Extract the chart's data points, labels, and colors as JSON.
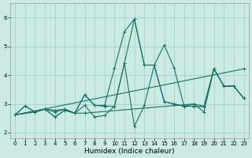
{
  "xlabel": "Humidex (Indice chaleur)",
  "bg_color": "#cceae4",
  "grid_color": "#aad4cc",
  "line_color": "#1a7068",
  "xlim": [
    -0.5,
    23.5
  ],
  "ylim": [
    1.8,
    6.5
  ],
  "yticks": [
    2,
    3,
    4,
    5,
    6
  ],
  "xticks": [
    0,
    1,
    2,
    3,
    4,
    5,
    6,
    7,
    8,
    9,
    10,
    11,
    12,
    13,
    14,
    15,
    16,
    17,
    18,
    19,
    20,
    21,
    22,
    23
  ],
  "series": [
    {
      "x": [
        0,
        1,
        2,
        3,
        4,
        5,
        6,
        7,
        8,
        9,
        10,
        11,
        12,
        13,
        14,
        15,
        16,
        17,
        18,
        19,
        20,
        21,
        22,
        23
      ],
      "y": [
        2.62,
        2.93,
        2.72,
        2.82,
        2.78,
        2.82,
        2.68,
        3.32,
        2.95,
        2.95,
        4.25,
        5.52,
        5.95,
        4.35,
        4.35,
        5.05,
        4.25,
        2.92,
        2.92,
        2.9,
        4.22,
        3.62,
        3.62,
        3.2
      ]
    },
    {
      "x": [
        0,
        2,
        3,
        4,
        5,
        6,
        7,
        8,
        9,
        10,
        11,
        12,
        13,
        14,
        15,
        16,
        17,
        18
      ],
      "y": [
        2.62,
        2.72,
        2.82,
        2.55,
        2.78,
        2.68,
        3.32,
        2.95,
        2.92,
        2.92,
        4.42,
        2.22,
        2.95,
        4.35,
        3.08,
        3.0,
        2.92,
        2.92
      ]
    },
    {
      "x": [
        0,
        3,
        4,
        5,
        6,
        7,
        18,
        19,
        20,
        21,
        22,
        23
      ],
      "y": [
        2.62,
        2.82,
        2.55,
        2.78,
        2.68,
        2.68,
        3.0,
        2.92,
        4.22,
        3.62,
        3.62,
        3.2
      ]
    },
    {
      "x": [
        0,
        23
      ],
      "y": [
        2.62,
        4.22
      ]
    },
    {
      "x": [
        0,
        1,
        2,
        3,
        4,
        5,
        6,
        7,
        8,
        9,
        10,
        11,
        12,
        13,
        14,
        15,
        16,
        17,
        18,
        19,
        20,
        21,
        22,
        23
      ],
      "y": [
        2.62,
        2.93,
        2.72,
        2.82,
        2.72,
        2.82,
        2.68,
        2.95,
        2.55,
        2.6,
        2.92,
        4.42,
        5.95,
        4.35,
        4.35,
        3.08,
        3.0,
        2.92,
        3.0,
        2.72,
        4.22,
        3.62,
        3.62,
        3.2
      ]
    }
  ]
}
